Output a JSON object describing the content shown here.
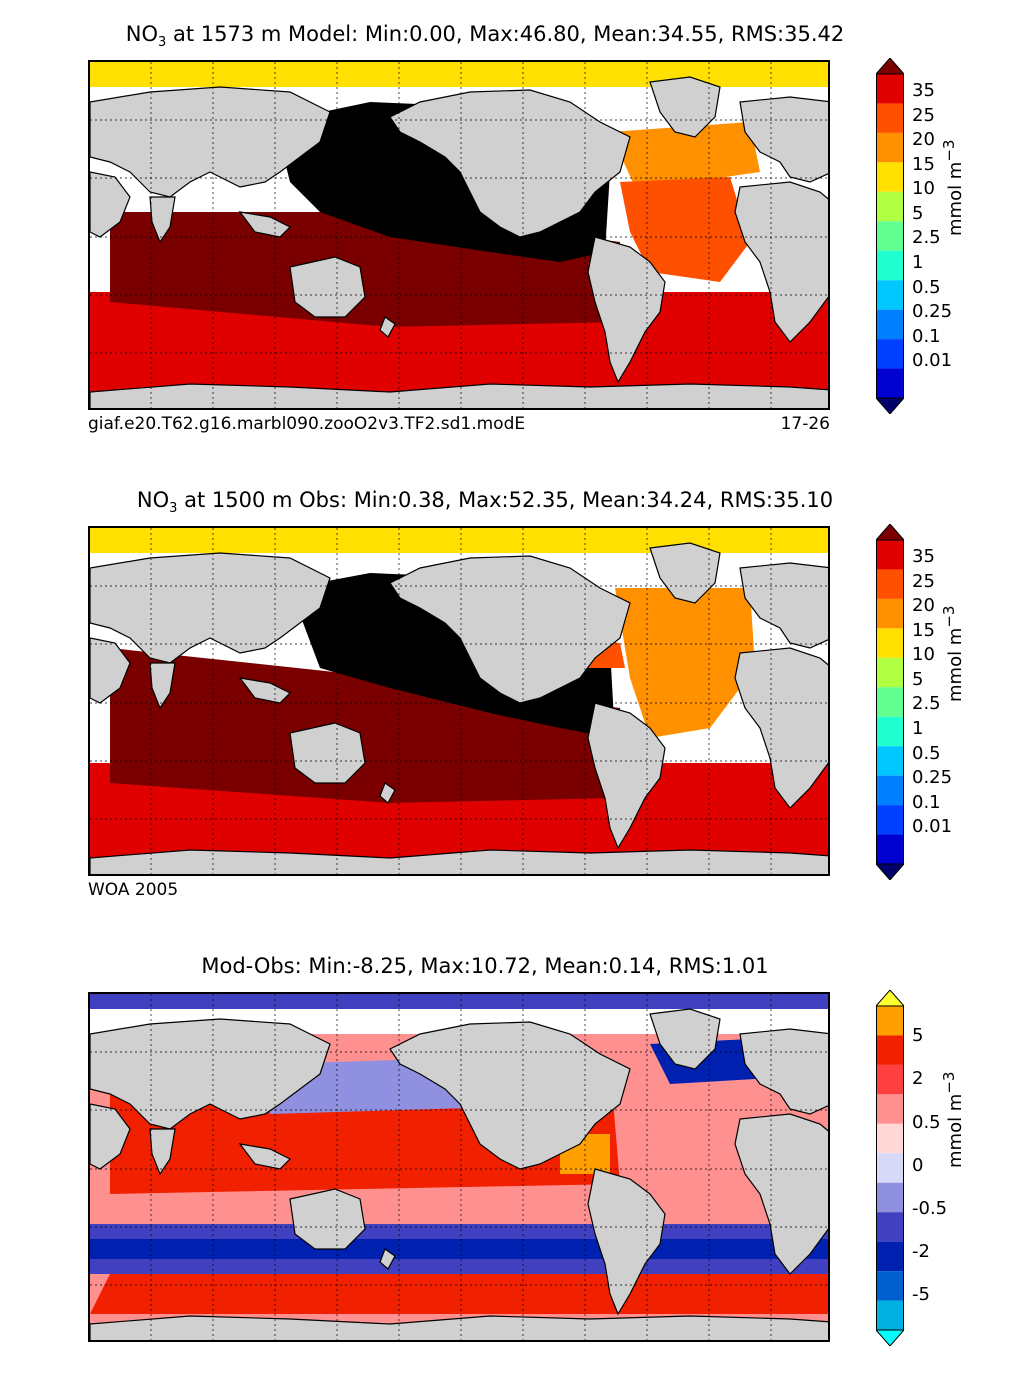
{
  "panels": [
    {
      "title_prefix": "NO",
      "title_sub": "3",
      "title_rest": " at 1573 m Model: Min:0.00, Max:46.80, Mean:34.55, RMS:35.42",
      "footer_left": "giaf.e20.T62.g16.marbl090.zooO2v3.TF2.sd1.modE",
      "footer_right": "17-26",
      "colorbar_label": "mmol m",
      "colorbar_label_sup": "−3",
      "colorbar_ticks": [
        "35",
        "25",
        "20",
        "15",
        "10",
        "5",
        "2.5",
        "1",
        "0.5",
        "0.25",
        "0.1",
        "0.01"
      ],
      "colorbar_colors": [
        "#7a0000",
        "#e00000",
        "#ff5000",
        "#ff9000",
        "#ffe000",
        "#b0ff40",
        "#60ff90",
        "#20ffd0",
        "#00c8ff",
        "#0080ff",
        "#0040ff",
        "#0000d0",
        "#00006a"
      ]
    },
    {
      "title_prefix": "NO",
      "title_sub": "3",
      "title_rest": " at 1500 m Obs: Min:0.38, Max:52.35, Mean:34.24, RMS:35.10",
      "footer_left": "WOA 2005",
      "footer_right": "",
      "colorbar_label": "mmol m",
      "colorbar_label_sup": "−3",
      "colorbar_ticks": [
        "35",
        "25",
        "20",
        "15",
        "10",
        "5",
        "2.5",
        "1",
        "0.5",
        "0.25",
        "0.1",
        "0.01"
      ],
      "colorbar_colors": [
        "#7a0000",
        "#e00000",
        "#ff5000",
        "#ff9000",
        "#ffe000",
        "#b0ff40",
        "#60ff90",
        "#20ffd0",
        "#00c8ff",
        "#0080ff",
        "#0040ff",
        "#0000d0",
        "#00006a"
      ]
    },
    {
      "title_prefix": "",
      "title_sub": "",
      "title_rest": "Mod-Obs: Min:-8.25, Max:10.72, Mean:0.14, RMS:1.01",
      "footer_left": "",
      "footer_right": "",
      "colorbar_label": "mmol m",
      "colorbar_label_sup": "−3",
      "colorbar_ticks": [
        "5",
        "2",
        "0.5",
        "0",
        "-0.5",
        "-2",
        "-5"
      ],
      "colorbar_colors": [
        "#ffff30",
        "#ffa000",
        "#f02000",
        "#ff4040",
        "#ff9090",
        "#ffd8d8",
        "#d8d8f8",
        "#9090e0",
        "#4040c0",
        "#0020b0",
        "#0060d0",
        "#00b0e0",
        "#00ffff"
      ]
    }
  ],
  "chart_data": {
    "type": "heatmap",
    "panels": [
      {
        "variable": "NO3",
        "depth_m": 1573,
        "source": "Model",
        "min": 0.0,
        "max": 46.8,
        "mean": 34.55,
        "rms": 35.42,
        "units": "mmol m-3",
        "levels": [
          0.01,
          0.1,
          0.25,
          0.5,
          1,
          2.5,
          5,
          10,
          15,
          20,
          25,
          35
        ]
      },
      {
        "variable": "NO3",
        "depth_m": 1500,
        "source": "Obs",
        "min": 0.38,
        "max": 52.35,
        "mean": 34.24,
        "rms": 35.1,
        "units": "mmol m-3",
        "levels": [
          0.01,
          0.1,
          0.25,
          0.5,
          1,
          2.5,
          5,
          10,
          15,
          20,
          25,
          35
        ]
      },
      {
        "variable": "NO3",
        "source": "Mod-Obs",
        "min": -8.25,
        "max": 10.72,
        "mean": 0.14,
        "rms": 1.01,
        "units": "mmol m-3",
        "levels": [
          -5,
          -2,
          -0.5,
          0,
          0.5,
          2,
          5
        ]
      }
    ]
  }
}
